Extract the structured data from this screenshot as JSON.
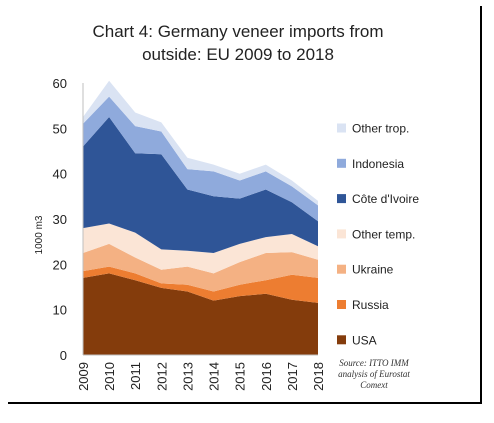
{
  "chart_data": {
    "type": "area",
    "stacked": true,
    "title": "Chart 4: Germany veneer imports from outside: EU 2009 to 2018",
    "title_lines": [
      "Chart 4: Germany veneer imports from",
      "outside: EU 2009 to 2018"
    ],
    "ylabel": "1000 m3",
    "xlabel": "",
    "ylim": [
      0,
      60
    ],
    "yticks": [
      0,
      10,
      20,
      30,
      40,
      50,
      60
    ],
    "x": [
      "2009",
      "2010",
      "2011",
      "2012",
      "2013",
      "2014",
      "2015",
      "2016",
      "2017",
      "2018"
    ],
    "grid": false,
    "legend_position": "right",
    "series": [
      {
        "name": "USA",
        "color": "#843C0C",
        "values": [
          17,
          18,
          16.5,
          14.8,
          14,
          12,
          13,
          13.5,
          12.2,
          11.5
        ]
      },
      {
        "name": "Russia",
        "color": "#ED7D31",
        "values": [
          1.5,
          1.5,
          1.5,
          1,
          1.5,
          2,
          2.5,
          3,
          5.5,
          5.5
        ]
      },
      {
        "name": "Ukraine",
        "color": "#F4B183",
        "values": [
          4,
          5,
          3.5,
          3,
          4,
          4,
          5,
          6,
          5,
          4
        ]
      },
      {
        "name": "Other temp.",
        "color": "#FBE5D6",
        "values": [
          5.5,
          4.5,
          5.5,
          4.5,
          3.5,
          4.5,
          4,
          3.5,
          4,
          3
        ]
      },
      {
        "name": "Côte d'Ivoire",
        "color": "#2F5597",
        "values": [
          18,
          23.5,
          17.5,
          21,
          13.5,
          12.5,
          10,
          10.5,
          7,
          5.5
        ]
      },
      {
        "name": "Indonesia",
        "color": "#8FAADC",
        "values": [
          5,
          4.5,
          6,
          5,
          4.5,
          5.5,
          4,
          4,
          3.5,
          3.5
        ]
      },
      {
        "name": "Other trop.",
        "color": "#DAE3F3",
        "values": [
          1.5,
          3.5,
          3,
          2,
          2.5,
          1.5,
          1.5,
          1.5,
          1.3,
          1
        ]
      }
    ],
    "source_note": [
      "Source: ITTO IMM",
      "analysis of Eurostat",
      "Comext"
    ]
  }
}
